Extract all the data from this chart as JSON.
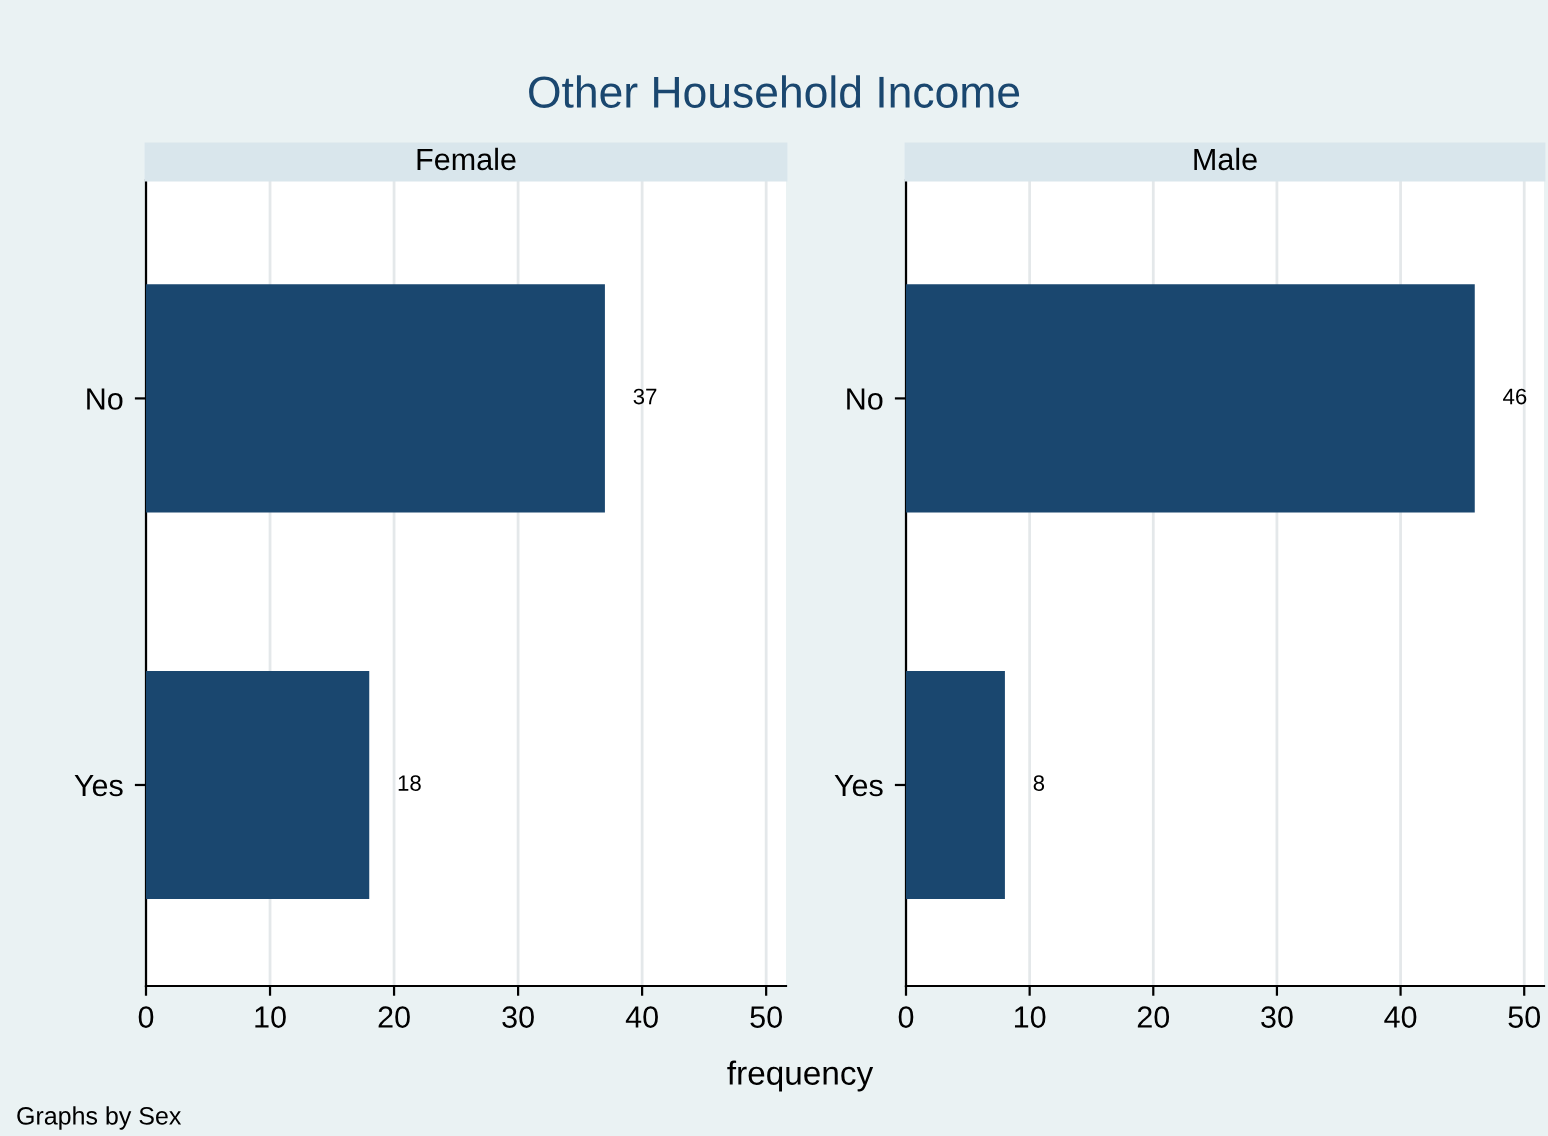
{
  "chart_data": [
    {
      "type": "bar",
      "orientation": "horizontal",
      "title": "Other Household Income",
      "subtitle": "Female",
      "xlabel": "frequency",
      "annotations": [
        "Graphs by Sex"
      ],
      "categories": [
        "No",
        "Yes"
      ],
      "values": [
        37,
        18
      ],
      "color": "#1a476f",
      "data_labels": true,
      "xlim": [
        0,
        51.6
      ],
      "xticks": [
        0,
        10,
        20,
        30,
        40,
        50
      ],
      "grid": "x"
    },
    {
      "type": "bar",
      "orientation": "horizontal",
      "subtitle": "Male",
      "categories": [
        "No",
        "Yes"
      ],
      "values": [
        46,
        8
      ],
      "color": "#1a476f",
      "data_labels": true,
      "xlim": [
        0,
        51.6
      ],
      "xticks": [
        0,
        10,
        20,
        30,
        40,
        50
      ],
      "grid": "x"
    }
  ]
}
